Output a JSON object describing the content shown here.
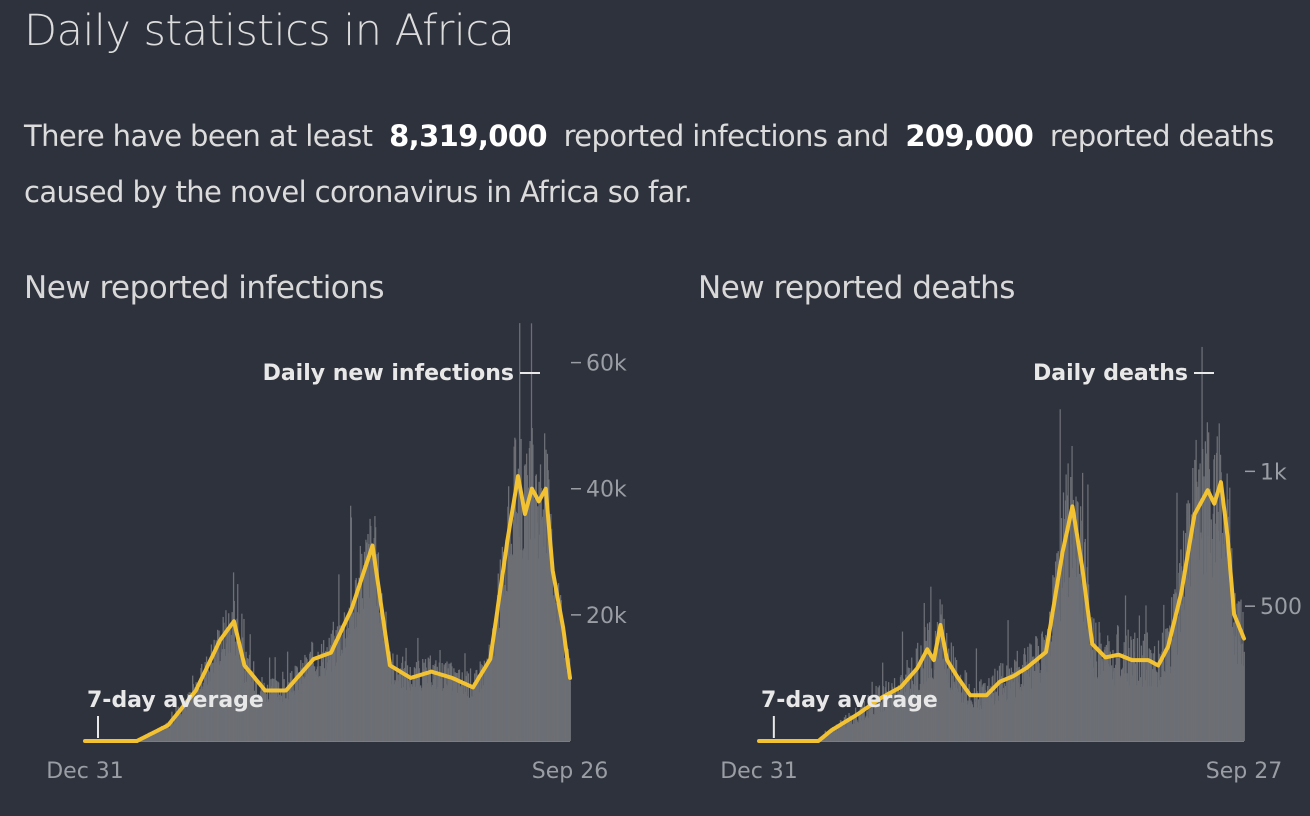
{
  "title": "Daily statistics in Africa",
  "summary": {
    "prefix": "There have been at least",
    "infections": "8,319,000",
    "middle": "reported infections and",
    "deaths": "209,000",
    "suffix": "reported deaths caused by the novel coronavirus in Africa so far."
  },
  "colors": {
    "background": "#2e323c",
    "bars": "#6c6f75",
    "average": "#f2c232",
    "text": "#dcdcdc",
    "axis": "#9a9da3"
  },
  "chart_data": [
    {
      "type": "bar",
      "title": "New reported infections",
      "bar_label": "Daily new infections",
      "line_label": "7-day average",
      "x_start": "Dec 31",
      "x_end": "Sep 26",
      "y_ticks": [
        "20k",
        "40k",
        "60k"
      ],
      "y_tick_values": [
        20000,
        40000,
        60000
      ],
      "ylim": [
        0,
        62000
      ],
      "days": 636,
      "average_keypoints": [
        [
          0,
          0
        ],
        [
          75,
          0
        ],
        [
          120,
          2500
        ],
        [
          160,
          8000
        ],
        [
          195,
          16000
        ],
        [
          215,
          19000
        ],
        [
          230,
          12000
        ],
        [
          260,
          8000
        ],
        [
          290,
          8000
        ],
        [
          330,
          13000
        ],
        [
          355,
          14000
        ],
        [
          385,
          21000
        ],
        [
          415,
          31000
        ],
        [
          440,
          12000
        ],
        [
          470,
          10000
        ],
        [
          500,
          11000
        ],
        [
          530,
          10000
        ],
        [
          560,
          8500
        ],
        [
          585,
          13000
        ],
        [
          610,
          32000
        ],
        [
          625,
          42000
        ],
        [
          635,
          36000
        ],
        [
          645,
          40000
        ],
        [
          655,
          38000
        ],
        [
          665,
          40000
        ],
        [
          675,
          27000
        ],
        [
          690,
          18000
        ],
        [
          700,
          10000
        ]
      ],
      "noise_amplitude": 0.25
    },
    {
      "type": "bar",
      "title": "New reported deaths",
      "bar_label": "Daily deaths",
      "line_label": "7-day average",
      "x_start": "Dec 31",
      "x_end": "Sep 27",
      "y_ticks": [
        "500",
        "1k"
      ],
      "y_tick_values": [
        500,
        1000
      ],
      "ylim": [
        0,
        1450
      ],
      "days": 637,
      "average_keypoints": [
        [
          0,
          0
        ],
        [
          90,
          0
        ],
        [
          110,
          40
        ],
        [
          150,
          100
        ],
        [
          185,
          160
        ],
        [
          215,
          200
        ],
        [
          240,
          270
        ],
        [
          255,
          340
        ],
        [
          265,
          300
        ],
        [
          275,
          430
        ],
        [
          285,
          300
        ],
        [
          300,
          240
        ],
        [
          320,
          170
        ],
        [
          345,
          170
        ],
        [
          365,
          220
        ],
        [
          385,
          240
        ],
        [
          405,
          270
        ],
        [
          435,
          330
        ],
        [
          460,
          700
        ],
        [
          475,
          870
        ],
        [
          490,
          640
        ],
        [
          505,
          360
        ],
        [
          525,
          310
        ],
        [
          545,
          320
        ],
        [
          565,
          300
        ],
        [
          590,
          300
        ],
        [
          605,
          280
        ],
        [
          620,
          350
        ],
        [
          640,
          550
        ],
        [
          660,
          840
        ],
        [
          680,
          930
        ],
        [
          690,
          880
        ],
        [
          700,
          960
        ],
        [
          710,
          760
        ],
        [
          720,
          470
        ],
        [
          735,
          380
        ]
      ],
      "noise_amplitude": 0.35
    }
  ]
}
